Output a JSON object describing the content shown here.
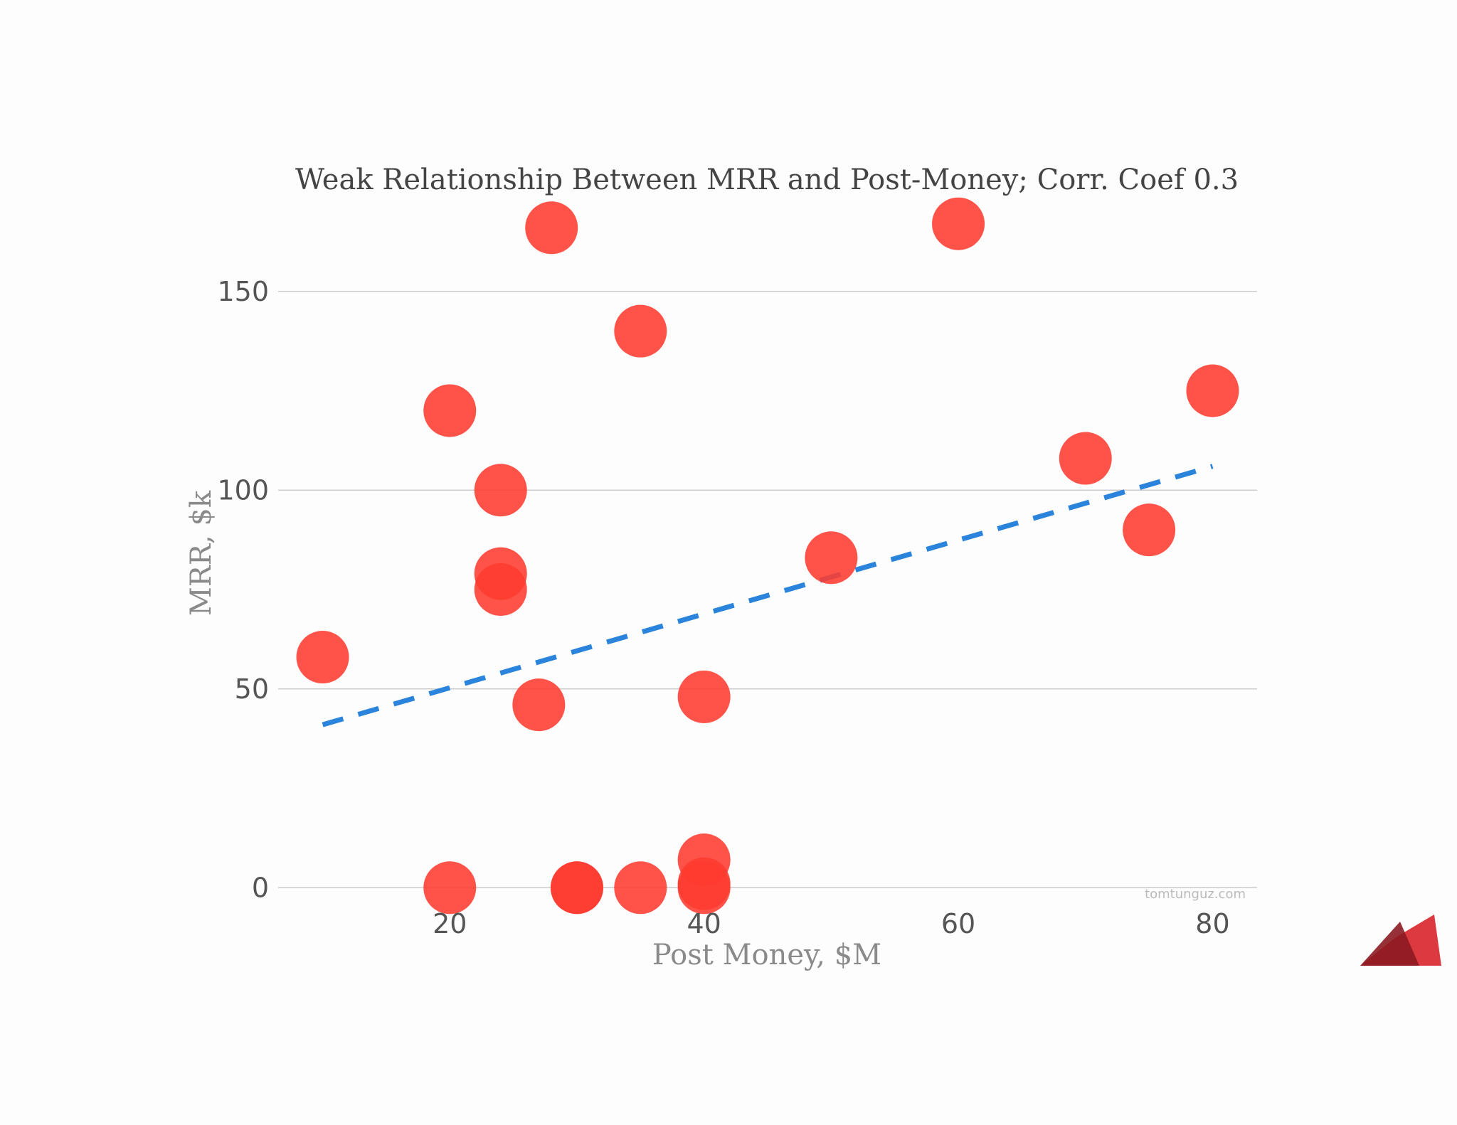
{
  "chart_data": {
    "type": "scatter",
    "title": "Weak Relationship Between MRR and Post-Money; Corr. Coef 0.3",
    "xlabel": "Post Money, $M",
    "ylabel": "MRR, $k",
    "xlim": [
      6.5,
      83.5
    ],
    "ylim": [
      -8,
      175
    ],
    "x_ticks": [
      20,
      40,
      60,
      80
    ],
    "y_ticks": [
      0,
      50,
      100,
      150
    ],
    "grid": "horizontal",
    "legend": "none",
    "point_color": "#ff3b30",
    "trend_color": "#2a84dc",
    "points": [
      {
        "x": 10,
        "y": 58
      },
      {
        "x": 20,
        "y": 120
      },
      {
        "x": 20,
        "y": 0
      },
      {
        "x": 24,
        "y": 100
      },
      {
        "x": 24,
        "y": 79
      },
      {
        "x": 24,
        "y": 75
      },
      {
        "x": 27,
        "y": 46
      },
      {
        "x": 28,
        "y": 166
      },
      {
        "x": 30,
        "y": 0
      },
      {
        "x": 30,
        "y": 0
      },
      {
        "x": 35,
        "y": 140
      },
      {
        "x": 35,
        "y": 0
      },
      {
        "x": 40,
        "y": 48
      },
      {
        "x": 40,
        "y": 7
      },
      {
        "x": 40,
        "y": 1
      },
      {
        "x": 40,
        "y": 0
      },
      {
        "x": 50,
        "y": 83
      },
      {
        "x": 60,
        "y": 167
      },
      {
        "x": 70,
        "y": 108
      },
      {
        "x": 75,
        "y": 90
      },
      {
        "x": 80,
        "y": 125
      }
    ],
    "trendline": {
      "x": [
        10,
        80
      ],
      "y": [
        41,
        106
      ]
    }
  },
  "watermark": "tomtunguz.com"
}
